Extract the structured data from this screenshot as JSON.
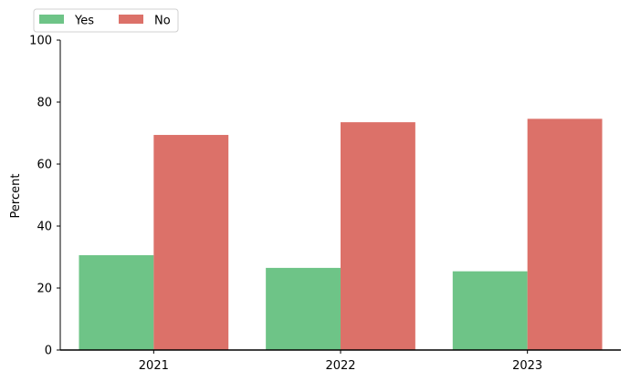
{
  "chart_data": {
    "type": "bar",
    "categories": [
      "2021",
      "2022",
      "2023"
    ],
    "series": [
      {
        "name": "Yes",
        "color": "#6ec487",
        "values": [
          30.6,
          26.5,
          25.4
        ]
      },
      {
        "name": "No",
        "color": "#dc7169",
        "values": [
          69.4,
          73.5,
          74.6
        ]
      }
    ],
    "title": "",
    "xlabel": "",
    "ylabel": "Percent",
    "ylim": [
      0,
      100
    ],
    "yticks": [
      0,
      20,
      40,
      60,
      80,
      100
    ],
    "grid": false,
    "legend": "top-left"
  }
}
